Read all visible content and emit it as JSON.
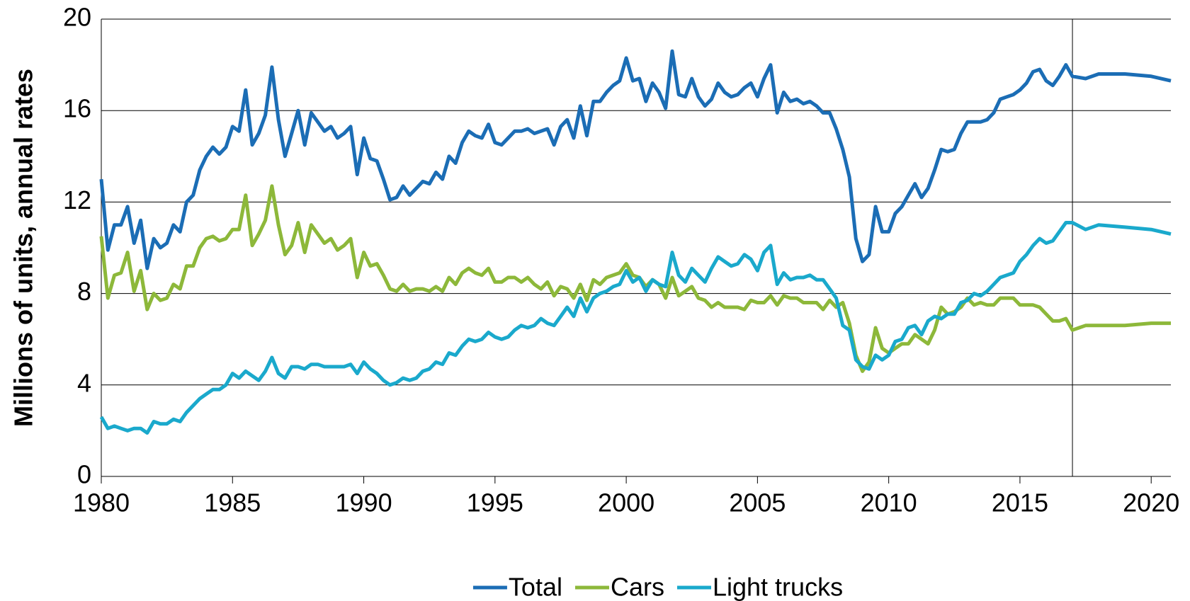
{
  "chart_data": {
    "type": "line",
    "ylabel": "Millions of units, annual rates",
    "x": [
      1980,
      1980.25,
      1980.5,
      1980.75,
      1981,
      1981.25,
      1981.5,
      1981.75,
      1982,
      1982.25,
      1982.5,
      1982.75,
      1983,
      1983.25,
      1983.5,
      1983.75,
      1984,
      1984.25,
      1984.5,
      1984.75,
      1985,
      1985.25,
      1985.5,
      1985.75,
      1986,
      1986.25,
      1986.5,
      1986.75,
      1987,
      1987.25,
      1987.5,
      1987.75,
      1988,
      1988.25,
      1988.5,
      1988.75,
      1989,
      1989.25,
      1989.5,
      1989.75,
      1990,
      1990.25,
      1990.5,
      1990.75,
      1991,
      1991.25,
      1991.5,
      1991.75,
      1992,
      1992.25,
      1992.5,
      1992.75,
      1993,
      1993.25,
      1993.5,
      1993.75,
      1994,
      1994.25,
      1994.5,
      1994.75,
      1995,
      1995.25,
      1995.5,
      1995.75,
      1996,
      1996.25,
      1996.5,
      1996.75,
      1997,
      1997.25,
      1997.5,
      1997.75,
      1998,
      1998.25,
      1998.5,
      1998.75,
      1999,
      1999.25,
      1999.5,
      1999.75,
      2000,
      2000.25,
      2000.5,
      2000.75,
      2001,
      2001.25,
      2001.5,
      2001.75,
      2002,
      2002.25,
      2002.5,
      2002.75,
      2003,
      2003.25,
      2003.5,
      2003.75,
      2004,
      2004.25,
      2004.5,
      2004.75,
      2005,
      2005.25,
      2005.5,
      2005.75,
      2006,
      2006.25,
      2006.5,
      2006.75,
      2007,
      2007.25,
      2007.5,
      2007.75,
      2008,
      2008.25,
      2008.5,
      2008.75,
      2009,
      2009.25,
      2009.5,
      2009.75,
      2010,
      2010.25,
      2010.5,
      2010.75,
      2011,
      2011.25,
      2011.5,
      2011.75,
      2012,
      2012.25,
      2012.5,
      2012.75,
      2013,
      2013.25,
      2013.5,
      2013.75,
      2014,
      2014.25,
      2014.5,
      2014.75,
      2015,
      2015.25,
      2015.5,
      2015.75,
      2016,
      2016.25,
      2016.5,
      2016.75,
      2017,
      2017.5,
      2018,
      2019,
      2020,
      2020.75
    ],
    "series": [
      {
        "name": "Total",
        "color": "#1b6db5",
        "values": [
          13.0,
          9.9,
          11.0,
          11.0,
          11.8,
          10.2,
          11.2,
          9.1,
          10.4,
          10.0,
          10.2,
          11.0,
          10.7,
          12.0,
          12.3,
          13.4,
          14.0,
          14.4,
          14.1,
          14.4,
          15.3,
          15.1,
          16.9,
          14.5,
          15.0,
          15.8,
          17.9,
          15.6,
          14.0,
          15.0,
          16.0,
          14.5,
          15.9,
          15.5,
          15.1,
          15.3,
          14.8,
          15.0,
          15.3,
          13.2,
          14.8,
          13.9,
          13.8,
          13.0,
          12.1,
          12.2,
          12.7,
          12.3,
          12.6,
          12.9,
          12.8,
          13.3,
          13.0,
          14.0,
          13.7,
          14.6,
          15.1,
          14.9,
          14.8,
          15.4,
          14.6,
          14.5,
          14.8,
          15.1,
          15.1,
          15.2,
          15.0,
          15.1,
          15.2,
          14.5,
          15.3,
          15.6,
          14.8,
          16.2,
          14.9,
          16.4,
          16.4,
          16.8,
          17.1,
          17.3,
          18.3,
          17.3,
          17.4,
          16.4,
          17.2,
          16.8,
          16.1,
          18.6,
          16.7,
          16.6,
          17.4,
          16.6,
          16.2,
          16.5,
          17.2,
          16.8,
          16.6,
          16.7,
          17.0,
          17.2,
          16.6,
          17.4,
          18.0,
          15.9,
          16.8,
          16.4,
          16.5,
          16.3,
          16.4,
          16.2,
          15.9,
          15.9,
          15.2,
          14.3,
          13.1,
          10.4,
          9.4,
          9.7,
          11.8,
          10.7,
          10.7,
          11.5,
          11.8,
          12.3,
          12.8,
          12.2,
          12.6,
          13.4,
          14.3,
          14.2,
          14.3,
          15.0,
          15.5,
          15.5,
          15.5,
          15.6,
          15.9,
          16.5,
          16.6,
          16.7,
          16.9,
          17.2,
          17.7,
          17.8,
          17.3,
          17.1,
          17.5,
          18.0,
          17.5,
          17.4,
          17.6,
          17.6,
          17.5,
          17.3
        ]
      },
      {
        "name": "Cars",
        "color": "#8db83a",
        "values": [
          10.5,
          7.8,
          8.8,
          8.9,
          9.8,
          8.1,
          9.0,
          7.3,
          8.0,
          7.7,
          7.8,
          8.4,
          8.2,
          9.2,
          9.2,
          10.0,
          10.4,
          10.5,
          10.3,
          10.4,
          10.8,
          10.8,
          12.3,
          10.1,
          10.6,
          11.2,
          12.7,
          11.0,
          9.7,
          10.1,
          11.1,
          9.8,
          11.0,
          10.6,
          10.2,
          10.4,
          9.9,
          10.1,
          10.4,
          8.7,
          9.8,
          9.2,
          9.3,
          8.8,
          8.2,
          8.1,
          8.4,
          8.1,
          8.2,
          8.2,
          8.1,
          8.3,
          8.1,
          8.7,
          8.4,
          8.9,
          9.1,
          8.9,
          8.8,
          9.1,
          8.5,
          8.5,
          8.7,
          8.7,
          8.5,
          8.7,
          8.4,
          8.2,
          8.5,
          7.9,
          8.3,
          8.2,
          7.8,
          8.4,
          7.7,
          8.6,
          8.4,
          8.7,
          8.8,
          8.9,
          9.3,
          8.8,
          8.7,
          8.3,
          8.6,
          8.4,
          7.8,
          8.7,
          7.9,
          8.1,
          8.3,
          7.8,
          7.7,
          7.4,
          7.6,
          7.4,
          7.4,
          7.4,
          7.3,
          7.7,
          7.6,
          7.6,
          7.9,
          7.5,
          7.9,
          7.8,
          7.8,
          7.6,
          7.6,
          7.6,
          7.3,
          7.7,
          7.4,
          7.6,
          6.7,
          5.3,
          4.6,
          5.0,
          6.5,
          5.6,
          5.4,
          5.6,
          5.8,
          5.8,
          6.2,
          6.0,
          5.8,
          6.4,
          7.4,
          7.1,
          7.2,
          7.4,
          7.8,
          7.5,
          7.6,
          7.5,
          7.5,
          7.8,
          7.8,
          7.8,
          7.5,
          7.5,
          7.5,
          7.4,
          7.1,
          6.8,
          6.8,
          6.9,
          6.4,
          6.6,
          6.6,
          6.6,
          6.7,
          6.7
        ]
      },
      {
        "name": "Light trucks",
        "color": "#1aa9cc",
        "values": [
          2.6,
          2.1,
          2.2,
          2.1,
          2.0,
          2.1,
          2.1,
          1.9,
          2.4,
          2.3,
          2.3,
          2.5,
          2.4,
          2.8,
          3.1,
          3.4,
          3.6,
          3.8,
          3.8,
          4.0,
          4.5,
          4.3,
          4.6,
          4.4,
          4.2,
          4.6,
          5.2,
          4.5,
          4.3,
          4.8,
          4.8,
          4.7,
          4.9,
          4.9,
          4.8,
          4.8,
          4.8,
          4.8,
          4.9,
          4.5,
          5.0,
          4.7,
          4.5,
          4.2,
          4.0,
          4.1,
          4.3,
          4.2,
          4.3,
          4.6,
          4.7,
          5.0,
          4.9,
          5.4,
          5.3,
          5.7,
          6.0,
          5.9,
          6.0,
          6.3,
          6.1,
          6.0,
          6.1,
          6.4,
          6.6,
          6.5,
          6.6,
          6.9,
          6.7,
          6.6,
          7.0,
          7.4,
          7.0,
          7.8,
          7.2,
          7.8,
          8.0,
          8.1,
          8.3,
          8.4,
          9.0,
          8.5,
          8.7,
          8.1,
          8.6,
          8.4,
          8.3,
          9.8,
          8.8,
          8.5,
          9.1,
          8.8,
          8.5,
          9.1,
          9.6,
          9.4,
          9.2,
          9.3,
          9.7,
          9.5,
          9.0,
          9.8,
          10.1,
          8.4,
          8.9,
          8.6,
          8.7,
          8.7,
          8.8,
          8.6,
          8.6,
          8.2,
          7.8,
          6.6,
          6.4,
          5.1,
          4.8,
          4.7,
          5.3,
          5.1,
          5.3,
          5.9,
          6.0,
          6.5,
          6.6,
          6.2,
          6.8,
          7.0,
          6.9,
          7.1,
          7.1,
          7.6,
          7.7,
          8.0,
          7.9,
          8.1,
          8.4,
          8.7,
          8.8,
          8.9,
          9.4,
          9.7,
          10.1,
          10.4,
          10.2,
          10.3,
          10.7,
          11.1,
          11.1,
          10.8,
          11.0,
          10.9,
          10.8,
          10.6
        ]
      }
    ],
    "xlim": [
      1980,
      2020.75
    ],
    "xticks": [
      1980,
      1985,
      1990,
      1995,
      2000,
      2005,
      2010,
      2015,
      2020
    ],
    "ylim": [
      0,
      20
    ],
    "yticks": [
      0,
      4,
      8,
      12,
      16,
      20
    ],
    "vline": 2017,
    "grid": true,
    "legend": "bottom"
  }
}
